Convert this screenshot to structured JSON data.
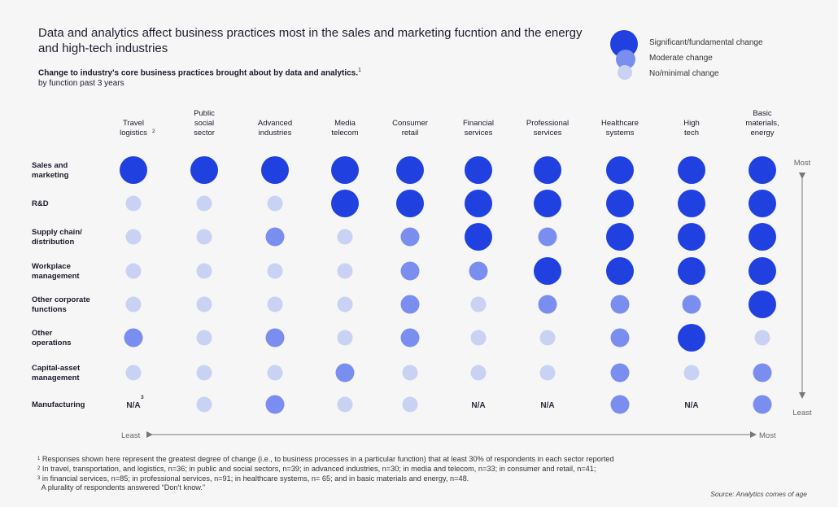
{
  "title": "Data and analytics affect business practices most in the sales and marketing fucntion and the energy and high-tech industries",
  "subtitle": {
    "line1": "Change to industry's core business practices brought about by data and analytics.",
    "line1_sup": "1",
    "line2": "by function past 3 years"
  },
  "legend": [
    {
      "label": "Significant/fundamental change",
      "level": 3,
      "color": "#2140e0"
    },
    {
      "label": "Moderate change",
      "level": 2,
      "color": "#7a8ef0"
    },
    {
      "label": "No/minimal change",
      "level": 1,
      "color": "#c9d2f2"
    }
  ],
  "chart_data": {
    "type": "bubble-matrix",
    "columns": [
      {
        "label": "Travel\nlogistics",
        "sup": "2"
      },
      {
        "label": "Public\nsocial\nsector"
      },
      {
        "label": "Advanced\nindustries"
      },
      {
        "label": "Media\ntelecom"
      },
      {
        "label": "Consumer\nretail"
      },
      {
        "label": "Financial\nservices"
      },
      {
        "label": "Professional\nservices"
      },
      {
        "label": "Healthcare\nsystems"
      },
      {
        "label": "High\ntech"
      },
      {
        "label": "Basic\nmaterials,\nenergy"
      }
    ],
    "rows": [
      {
        "label": "Sales and\nmarketing",
        "values": [
          3,
          3,
          3,
          3,
          3,
          3,
          3,
          3,
          3,
          3
        ]
      },
      {
        "label": "R&D",
        "values": [
          1,
          1,
          1,
          3,
          3,
          3,
          3,
          3,
          3,
          3
        ]
      },
      {
        "label": "Supply chain/\ndistribution",
        "values": [
          1,
          1,
          2,
          1,
          2,
          3,
          2,
          3,
          3,
          3
        ]
      },
      {
        "label": "Workplace\nmanagement",
        "values": [
          1,
          1,
          1,
          1,
          2,
          2,
          3,
          3,
          3,
          3
        ]
      },
      {
        "label": "Other corporate\nfunctions",
        "values": [
          1,
          1,
          1,
          1,
          2,
          1,
          2,
          2,
          2,
          3
        ]
      },
      {
        "label": "Other\noperations",
        "values": [
          2,
          1,
          2,
          1,
          2,
          1,
          1,
          2,
          3,
          1
        ]
      },
      {
        "label": "Capital-asset\nmanagement",
        "values": [
          1,
          1,
          1,
          2,
          1,
          1,
          1,
          2,
          1,
          2
        ]
      },
      {
        "label": "Manufacturing",
        "values": [
          "N/A",
          1,
          2,
          1,
          1,
          "N/A",
          "N/A",
          2,
          "N/A",
          2
        ]
      }
    ],
    "na_label": "N/A",
    "na_sup": "3",
    "scale": {
      "1": "No/minimal change",
      "2": "Moderate change",
      "3": "Significant/fundamental change"
    },
    "colors": {
      "3": "#2140e0",
      "2": "#7a8ef0",
      "1": "#c9d2f2"
    },
    "y_axis": {
      "top": "Most",
      "bottom": "Least"
    },
    "x_axis": {
      "left": "Least",
      "right": "Most"
    }
  },
  "footnotes": [
    {
      "sup": "1",
      "text": "Responses shown here represent the greatest degree of change (i.e., to business processes in a particular function) that at least 30% of respondents in each sector reported"
    },
    {
      "sup": "2",
      "text": "In travel, transportation, and logistics, n=36; in public and social sectors, n=39; in advanced industries, n=30; in media and telecom, n=33; in consumer and retail, n=41;"
    },
    {
      "sup": "3",
      "text": "in financial services, n=85; in professional services, n=91; in healthcare systems, n= 65; and in basic materials and energy, n=48."
    },
    {
      "sup": "",
      "text": " A plurality of respondents answered “Don't know.”"
    }
  ],
  "source": "Source: Analytics comes of age"
}
